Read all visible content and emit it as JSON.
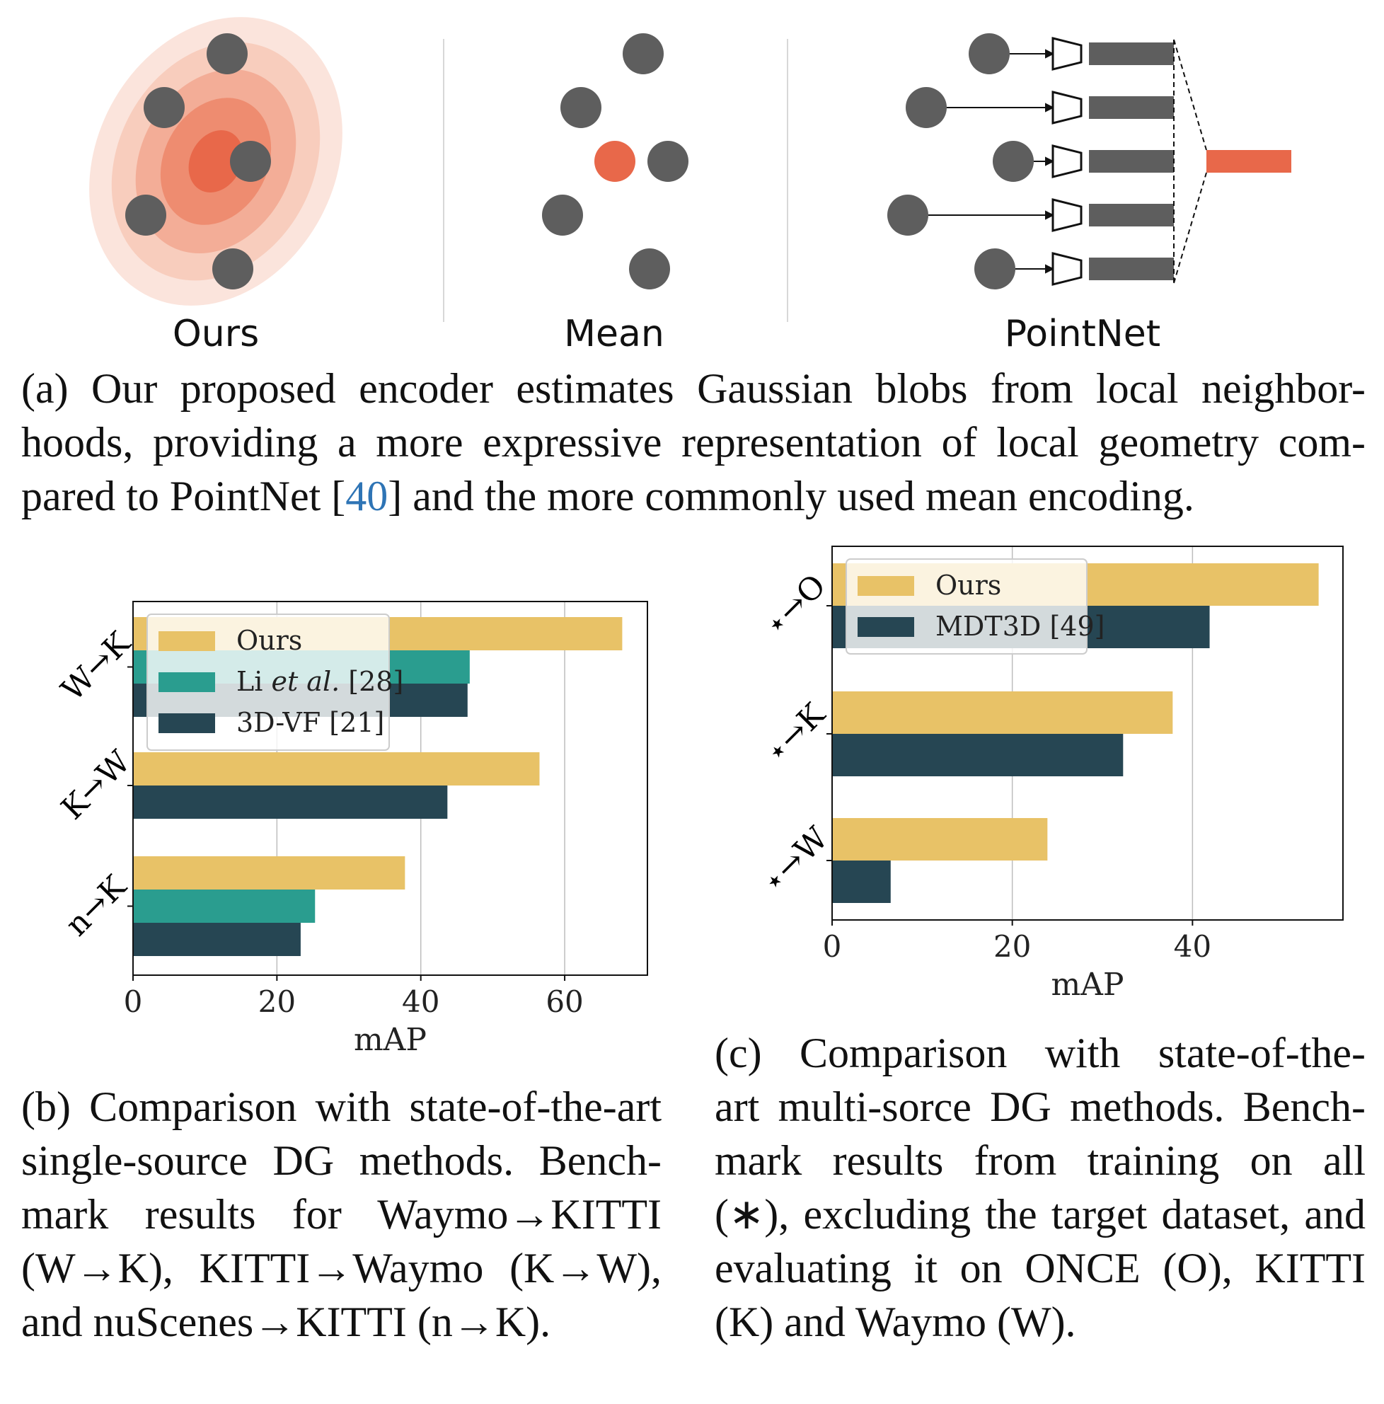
{
  "panel_a": {
    "labels": [
      "Ours",
      "Mean",
      "PointNet"
    ],
    "caption": {
      "prefix": "(a) Our proposed encoder estimates Gaussian blobs from local neighbor-",
      "line2": "hoods, providing a more expressive representation of local geometry com-",
      "line3_before": "pared to PointNet [",
      "ref": "40",
      "line3_after": "] and the more commonly used mean encoding."
    },
    "colors": {
      "point": "#5e5e5e",
      "accent": "#e8684a",
      "blob": "#f4b5a3"
    }
  },
  "panel_b": {
    "caption_lines": [
      "(b) Comparison with state-of-the-art",
      "single-source DG methods. Bench-",
      "mark results for Waymo→KITTI",
      "(W→K), KITTI→Waymo (K→W),",
      "and nuScenes→KITTI (n→K)."
    ]
  },
  "panel_c": {
    "caption_lines": [
      "(c) Comparison with state-of-the-",
      "art multi-sorce DG methods. Bench-",
      "mark results from training on all",
      "(∗), excluding the target dataset, and",
      "evaluating it on ONCE (O), KITTI",
      "(K) and Waymo (W)."
    ]
  },
  "chart_data": [
    {
      "type": "bar",
      "orientation": "horizontal",
      "categories": [
        "W→K",
        "K→W",
        "n→K"
      ],
      "series": [
        {
          "name": "Ours",
          "values": [
            68,
            56.5,
            37.8
          ],
          "color": "#e8c267"
        },
        {
          "name": "Li et al. [28]",
          "values": [
            46.8,
            null,
            25.3
          ],
          "color": "#2a9d8f"
        },
        {
          "name": "3D-VF [21]",
          "values": [
            46.5,
            43.7,
            23.3
          ],
          "color": "#264653"
        }
      ],
      "xlabel": "mAP",
      "xticks": [
        0,
        20,
        40,
        60
      ],
      "xlim": [
        0,
        71.5
      ],
      "grid": "x",
      "legend": "top-left"
    },
    {
      "type": "bar",
      "orientation": "horizontal",
      "categories": [
        "⋆→O",
        "⋆→K",
        "⋆→W"
      ],
      "series": [
        {
          "name": "Ours",
          "values": [
            54,
            37.8,
            23.9
          ],
          "color": "#e8c267"
        },
        {
          "name": "MDT3D [49]",
          "values": [
            41.9,
            32.3,
            6.5
          ],
          "color": "#264653"
        }
      ],
      "xlabel": "mAP",
      "xticks": [
        0,
        20,
        40
      ],
      "xlim": [
        0,
        56.7
      ],
      "grid": "x",
      "legend": "top-left"
    }
  ]
}
